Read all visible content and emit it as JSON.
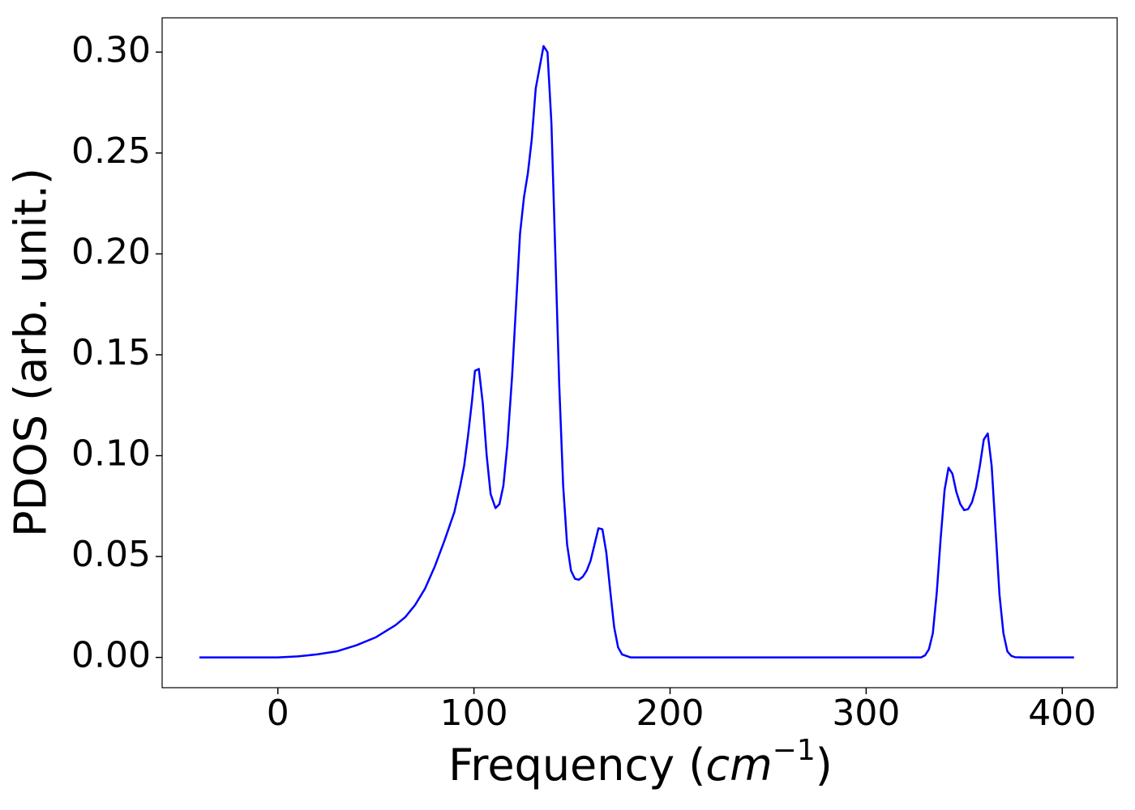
{
  "chart_data": {
    "type": "line",
    "xlabel": [
      "Frequency (",
      "cm",
      "−1",
      ")"
    ],
    "ylabel": "PDOS (arb. unit.)",
    "xlim": [
      -59,
      428
    ],
    "ylim": [
      -0.015,
      0.317
    ],
    "xticks": [
      0,
      100,
      200,
      300,
      400
    ],
    "yticks": [
      {
        "value": 0,
        "label": "0.00"
      },
      0.05,
      {
        "value": 0.1,
        "label": "0.10"
      },
      0.15,
      {
        "value": 0.2,
        "label": "0.20"
      },
      0.25,
      {
        "value": 0.3,
        "label": "0.30"
      }
    ],
    "series": [
      {
        "color": "#0000ff",
        "x": [
          -40,
          0,
          10,
          20,
          30,
          40,
          50,
          60,
          65,
          70,
          75,
          80,
          85,
          90,
          93,
          95,
          97,
          99,
          100.5,
          102.5,
          104.5,
          106.5,
          108.5,
          111,
          113,
          115,
          117,
          119.5,
          121.5,
          123.5,
          125.5,
          127.5,
          129.5,
          131.5,
          135.5,
          137.5,
          139.5,
          141.5,
          143.5,
          145.5,
          147.5,
          149.5,
          151.5,
          153.5,
          155.5,
          157.5,
          159.5,
          161.5,
          163.5,
          165.5,
          167.5,
          169.5,
          171.5,
          173.5,
          175.5,
          180,
          300,
          328,
          330,
          332,
          334,
          336,
          338,
          340,
          342,
          344,
          346,
          348,
          350,
          352,
          354,
          356,
          358,
          360,
          362,
          364,
          366,
          368,
          370,
          372,
          374,
          376,
          380,
          406
        ],
        "values": [
          0,
          0,
          0.0005,
          0.0015,
          0.003,
          0.006,
          0.01,
          0.016,
          0.02,
          0.026,
          0.034,
          0.045,
          0.058,
          0.072,
          0.085,
          0.095,
          0.11,
          0.127,
          0.142,
          0.143,
          0.126,
          0.1,
          0.081,
          0.074,
          0.076,
          0.085,
          0.105,
          0.14,
          0.175,
          0.21,
          0.228,
          0.24,
          0.257,
          0.282,
          0.303,
          0.3,
          0.265,
          0.2,
          0.135,
          0.085,
          0.056,
          0.043,
          0.039,
          0.0385,
          0.04,
          0.043,
          0.048,
          0.056,
          0.064,
          0.0635,
          0.052,
          0.033,
          0.015,
          0.005,
          0.0015,
          0,
          0,
          0,
          0.001,
          0.004,
          0.012,
          0.032,
          0.059,
          0.083,
          0.094,
          0.091,
          0.082,
          0.076,
          0.073,
          0.0735,
          0.077,
          0.084,
          0.095,
          0.108,
          0.111,
          0.095,
          0.063,
          0.031,
          0.012,
          0.003,
          0.0008,
          0.0001,
          0,
          0
        ]
      }
    ]
  }
}
